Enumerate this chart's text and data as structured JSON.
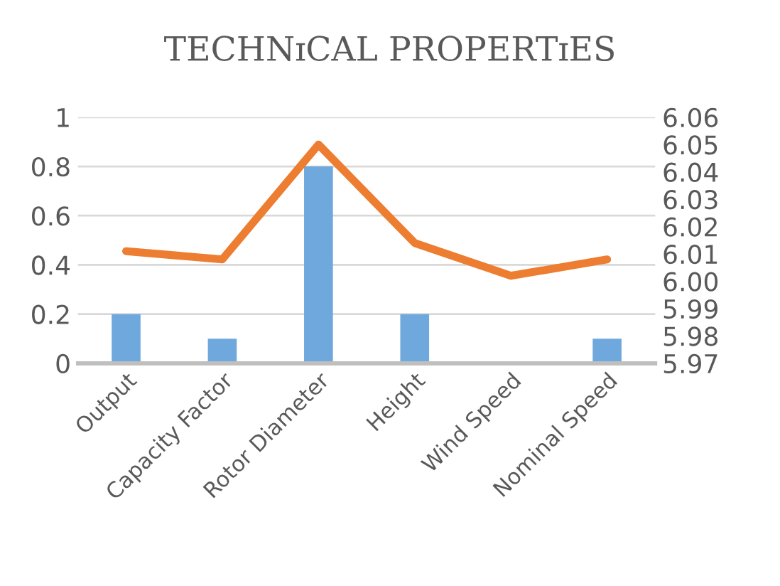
{
  "chart_data": {
    "type": "bar",
    "title": "TECHNɪCAL PROPERTɪES",
    "categories": [
      "Output",
      "Capacity Factor",
      "Rotor Diameter",
      "Height",
      "Wind Speed",
      "Nominal Speed"
    ],
    "series": [
      {
        "color": "#6fa8dc",
        "values": [
          0.2,
          0.1,
          0.8,
          0.2,
          0,
          0.1
        ]
      },
      {
        "type": "line",
        "axis": "y2",
        "color": "#ed7d31",
        "values": [
          6.011,
          6.008,
          6.05,
          6.014,
          6.002,
          6.008
        ]
      }
    ],
    "ylim": [
      0,
      1
    ],
    "yticks": [
      0,
      0.2,
      0.4,
      0.6,
      0.8,
      1
    ],
    "y2lim": [
      5.97,
      6.06
    ],
    "y2ticks": [
      5.97,
      5.98,
      5.99,
      {
        "value": 6.0,
        "label": "6.00"
      },
      6.01,
      6.02,
      6.03,
      6.04,
      6.05,
      6.06
    ],
    "grid": "y",
    "legend": false
  }
}
